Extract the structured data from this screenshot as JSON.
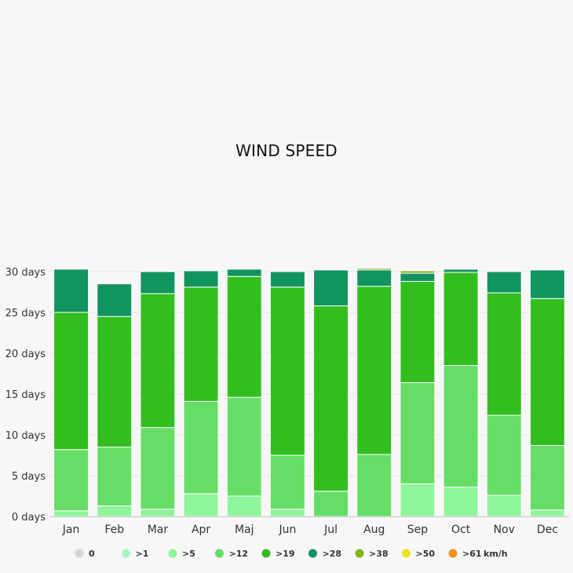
{
  "chart_data": {
    "type": "bar",
    "stacked": true,
    "title": "WIND SPEED",
    "y_unit": "days",
    "ylim": [
      0,
      30
    ],
    "ytick_labels": [
      "0 days",
      "5 days",
      "10 days",
      "15 days",
      "20 days",
      "25 days",
      "30 days"
    ],
    "categories": [
      "Jan",
      "Feb",
      "Mar",
      "Apr",
      "Maj",
      "Jun",
      "Jul",
      "Aug",
      "Sep",
      "Oct",
      "Nov",
      "Dec"
    ],
    "legend_position": "bottom",
    "legend_unit_suffix": "km/h",
    "series": [
      {
        "name": "0",
        "color": "#d9d4d6",
        "values": [
          0,
          0,
          0,
          0,
          0,
          0,
          0,
          0,
          0,
          0,
          0,
          0
        ]
      },
      {
        "name": ">1",
        "color": "#a8f5c8",
        "values": [
          0,
          0,
          0,
          0,
          0,
          0,
          0,
          0,
          0,
          0,
          0,
          0
        ]
      },
      {
        "name": ">5",
        "color": "#8ef59a",
        "values": [
          0.7,
          1.3,
          0.9,
          2.8,
          2.5,
          0.9,
          0,
          0,
          4.0,
          3.6,
          2.6,
          0.8
        ]
      },
      {
        "name": ">12",
        "color": "#66dd66",
        "values": [
          7.5,
          7.2,
          10.0,
          11.3,
          12.1,
          6.6,
          3.1,
          7.6,
          12.4,
          14.9,
          9.8,
          7.9
        ]
      },
      {
        "name": ">19",
        "color": "#32be1e",
        "values": [
          16.8,
          16.0,
          16.4,
          14.0,
          14.8,
          20.6,
          22.7,
          20.6,
          12.4,
          11.4,
          15.0,
          18.0
        ]
      },
      {
        "name": ">28",
        "color": "#129460",
        "values": [
          5.3,
          4.0,
          2.7,
          2.0,
          0.9,
          1.9,
          4.4,
          2.0,
          1.0,
          0.4,
          2.6,
          3.5
        ]
      },
      {
        "name": ">38",
        "color": "#86b21c",
        "values": [
          0,
          0,
          0,
          0,
          0,
          0,
          0,
          0.2,
          0.3,
          0.1,
          0,
          0
        ]
      },
      {
        "name": ">50",
        "color": "#ebe324",
        "values": [
          0,
          0,
          0,
          0,
          0,
          0,
          0,
          0,
          0,
          0,
          0,
          0
        ]
      },
      {
        "name": ">61",
        "color": "#f0921c",
        "values": [
          0,
          0,
          0,
          0,
          0,
          0,
          0,
          0,
          0,
          0,
          0,
          0
        ]
      }
    ]
  }
}
